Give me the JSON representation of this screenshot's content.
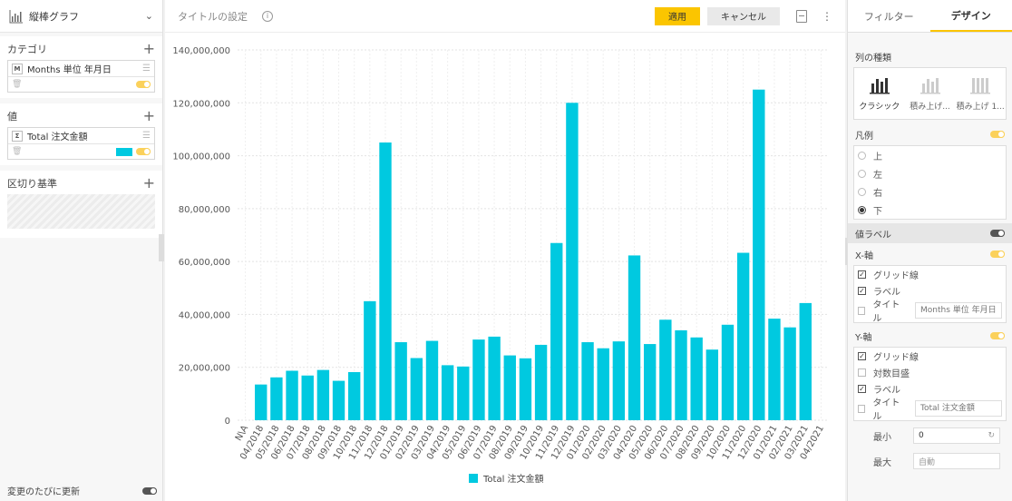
{
  "left_panel": {
    "chart_type_label": "縦棒グラフ",
    "sections": {
      "category": {
        "title": "カテゴリ",
        "field_badge": "M",
        "field_label": "Months 単位 年月日"
      },
      "values": {
        "title": "値",
        "field_badge": "Σ",
        "field_label": "Total 注文金額",
        "color": "#00c9e0"
      },
      "split": {
        "title": "区切り基準"
      }
    },
    "footer_label": "変更のたびに更新"
  },
  "header": {
    "title": "タイトルの設定",
    "apply_label": "適用",
    "cancel_label": "キャンセル"
  },
  "right_panel": {
    "tabs": [
      "フィルター",
      "デザイン"
    ],
    "active_tab": "デザイン",
    "column_type": {
      "title": "列の種類",
      "options": [
        "クラシック",
        "積み上げ...",
        "積み上げ 1..."
      ]
    },
    "legend": {
      "title": "凡例",
      "options": [
        "上",
        "左",
        "右",
        "下"
      ],
      "selected": "下"
    },
    "value_labels": "値ラベル",
    "x_axis": {
      "title": "X-軸",
      "grid": "グリッド線",
      "labels": "ラベル",
      "axis_title": "タイトル",
      "axis_title_placeholder": "Months 単位 年月日"
    },
    "y_axis": {
      "title": "Y-軸",
      "grid": "グリッド線",
      "log": "対数目盛",
      "labels": "ラベル",
      "axis_title": "タイトル",
      "axis_title_placeholder": "Total 注文金額",
      "min_label": "最小",
      "min_value": "0",
      "max_label": "最大",
      "max_placeholder": "自動"
    }
  },
  "chart_data": {
    "type": "bar",
    "categories": [
      "N\\A",
      "04/2018",
      "05/2018",
      "06/2018",
      "07/2018",
      "08/2018",
      "09/2018",
      "10/2018",
      "11/2018",
      "12/2018",
      "01/2019",
      "02/2019",
      "03/2019",
      "04/2019",
      "05/2019",
      "06/2019",
      "07/2019",
      "08/2019",
      "09/2019",
      "10/2019",
      "11/2019",
      "12/2019",
      "01/2020",
      "02/2020",
      "03/2020",
      "04/2020",
      "05/2020",
      "06/2020",
      "07/2020",
      "08/2020",
      "09/2020",
      "10/2020",
      "11/2020",
      "12/2020",
      "01/2021",
      "02/2021",
      "03/2021",
      "04/2021"
    ],
    "series": [
      {
        "name": "Total 注文金額",
        "color": "#00c9e0",
        "values": [
          0,
          13500000,
          16200000,
          18700000,
          16900000,
          19000000,
          14900000,
          18200000,
          45000000,
          105000000,
          29500000,
          23500000,
          30000000,
          20800000,
          20300000,
          30500000,
          31600000,
          24500000,
          23400000,
          28500000,
          67000000,
          120000000,
          29500000,
          27200000,
          29800000,
          62300000,
          28800000,
          38000000,
          34000000,
          31300000,
          26700000,
          36100000,
          63300000,
          125000000,
          38400000,
          35100000,
          44300000,
          0
        ]
      }
    ],
    "y_ticks": [
      "0",
      "20,000,000",
      "40,000,000",
      "60,000,000",
      "80,000,000",
      "100,000,000",
      "120,000,000",
      "140,000,000"
    ],
    "ylim": [
      0,
      140000000
    ],
    "grid": true,
    "legend_position": "bottom",
    "xlabel": "",
    "ylabel": ""
  }
}
